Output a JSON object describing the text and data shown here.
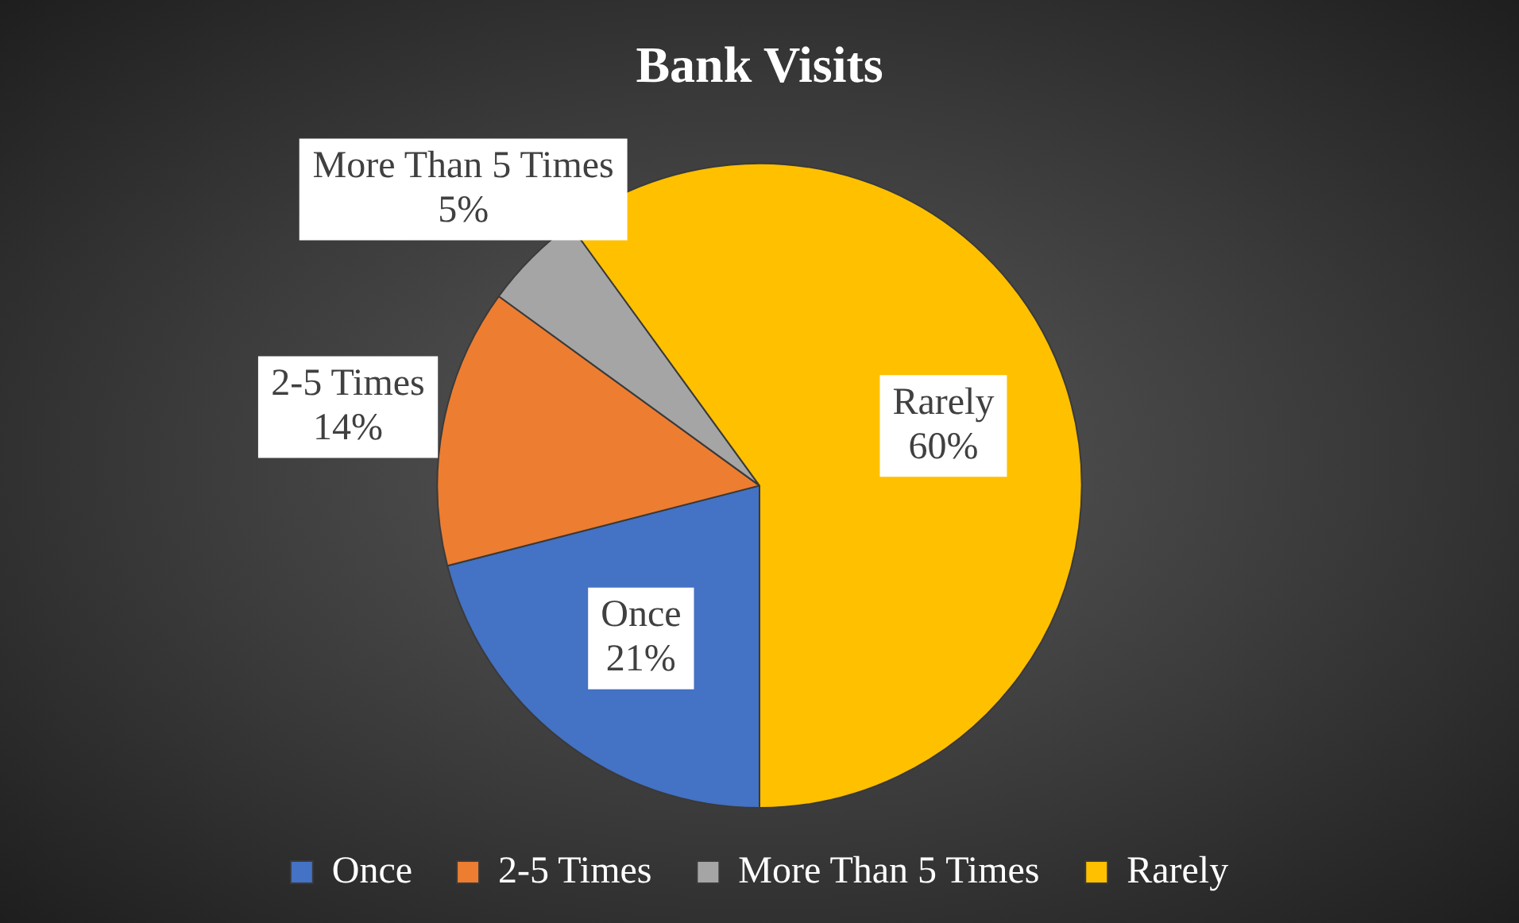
{
  "chart_data": {
    "type": "pie",
    "title": "Bank Visits",
    "categories": [
      "Once",
      "2-5 Times",
      "More Than 5 Times",
      "Rarely"
    ],
    "values": [
      21,
      14,
      5,
      60
    ],
    "colors": [
      "#4472c4",
      "#ed7d31",
      "#a5a5a5",
      "#ffc000"
    ],
    "value_labels": [
      "21%",
      "14%",
      "5%",
      "60%"
    ],
    "legend": "bottom"
  }
}
